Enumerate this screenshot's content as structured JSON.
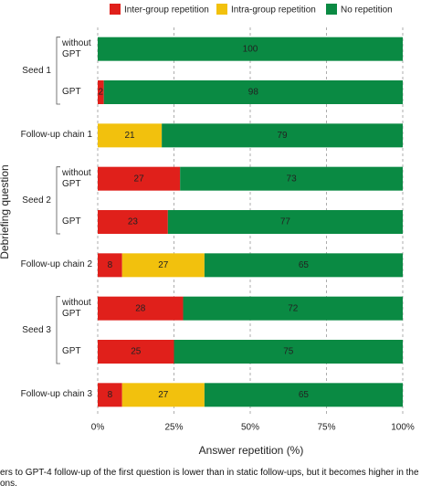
{
  "chart_data": {
    "type": "stacked_barh",
    "x_label": "Answer repetition (%)",
    "y_label": "Debriefing question",
    "categories": [
      "without GPT",
      "GPT",
      "Follow-up chain 1",
      "without GPT",
      "GPT",
      "Follow-up chain 2",
      "without GPT",
      "GPT",
      "Follow-up chain 3"
    ],
    "category_groups": [
      "Seed 1",
      "Seed 1",
      null,
      "Seed 2",
      "Seed 2",
      null,
      "Seed 3",
      "Seed 3",
      null
    ],
    "series": [
      {
        "name": "Inter-group repetition",
        "color": "#e0201b",
        "values": [
          0,
          2,
          0,
          27,
          23,
          8,
          28,
          25,
          8
        ]
      },
      {
        "name": "Intra-group repetition",
        "color": "#f2c10d",
        "values": [
          0,
          0,
          21,
          0,
          0,
          27,
          0,
          0,
          27
        ]
      },
      {
        "name": "No repetition",
        "color": "#0a8a43",
        "values": [
          100,
          98,
          79,
          73,
          77,
          65,
          72,
          75,
          65
        ]
      }
    ],
    "xlim": [
      0,
      100
    ],
    "xticks": [
      {
        "value": 0,
        "label": "0%"
      },
      {
        "value": 25,
        "label": "25%"
      },
      {
        "value": 50,
        "label": "50%"
      },
      {
        "value": 75,
        "label": "75%"
      },
      {
        "value": 100,
        "label": "100%"
      }
    ],
    "grid": true,
    "caption_lines": [
      "ers to GPT-4 follow-up of the first question is lower than in static follow-ups, but it becomes higher in the gen",
      "ons."
    ]
  }
}
